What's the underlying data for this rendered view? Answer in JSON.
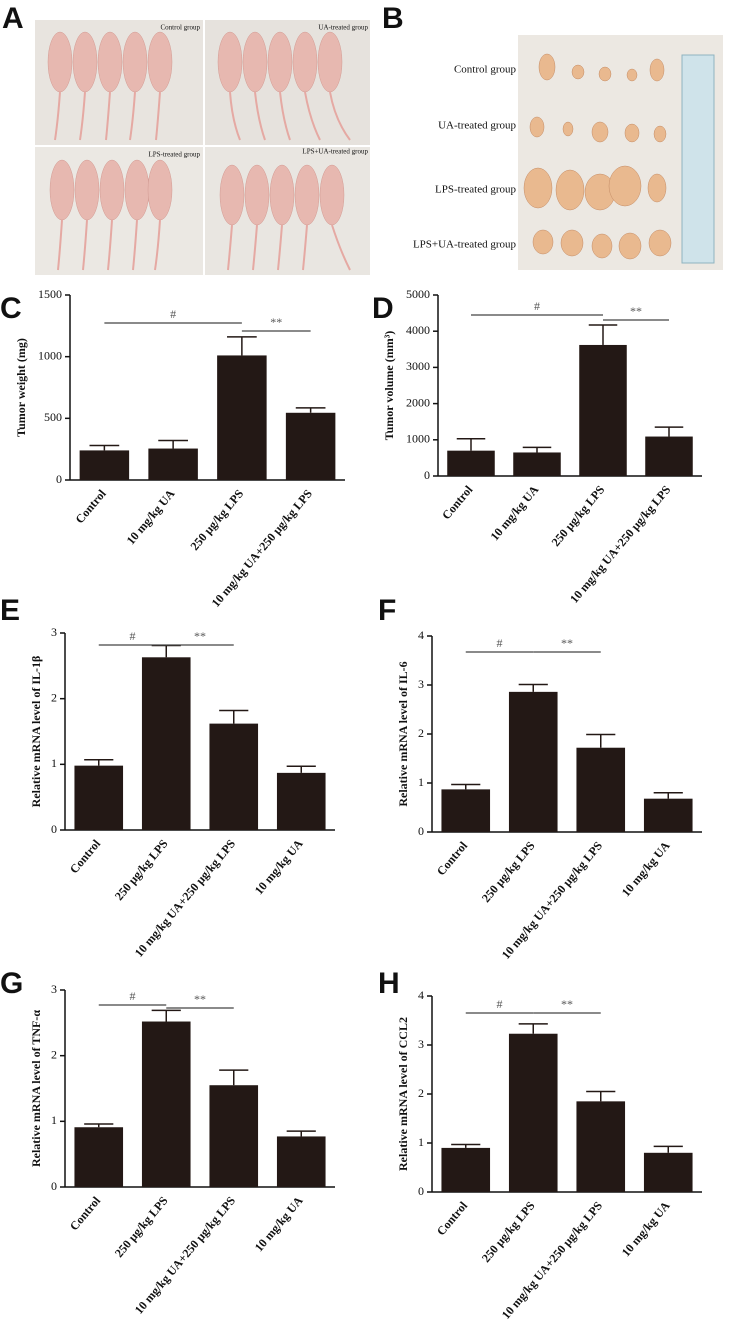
{
  "figure": {
    "panels": [
      {
        "letter": "A",
        "labels": [
          "Control group",
          "UA-treated group",
          "LPS-treated group",
          "LPS+UA-treated group"
        ]
      },
      {
        "letter": "B",
        "labels": [
          "Control group",
          "UA-treated group",
          "LPS-treated group",
          "LPS+UA-treated group"
        ]
      }
    ]
  },
  "chart_data": [
    {
      "type": "bar",
      "panel": "C",
      "y_label": "Tumor weight (mg)",
      "color": "#231815",
      "categories": [
        "Control",
        "10 mg/kg UA",
        "250 μg/kg LPS",
        "10 mg/kg UA+250 μg/kg LPS"
      ],
      "values": [
        240,
        255,
        1010,
        545
      ],
      "errors": [
        40,
        65,
        150,
        40
      ],
      "ylim": [
        0,
        1500
      ],
      "yticks": [
        0,
        500,
        1000,
        1500
      ],
      "annotations": [
        "#",
        "**"
      ]
    },
    {
      "type": "bar",
      "panel": "D",
      "y_label": "Tumor volume (mm³)",
      "color": "#231815",
      "categories": [
        "Control",
        "10 mg/kg UA",
        "250 μg/kg LPS",
        "10 mg/kg UA+250 μg/kg LPS"
      ],
      "values": [
        700,
        650,
        3620,
        1090
      ],
      "errors": [
        330,
        140,
        550,
        260
      ],
      "ylim": [
        0,
        5000
      ],
      "yticks": [
        0,
        1000,
        2000,
        3000,
        4000,
        5000
      ],
      "annotations": [
        "#",
        "**"
      ]
    },
    {
      "type": "bar",
      "panel": "E",
      "y_label": "Relative mRNA level of IL-1β",
      "color": "#231815",
      "categories": [
        "Control",
        "250 μg/kg LPS",
        "10 mg/kg UA+250 μg/kg LPS",
        "10 mg/kg UA"
      ],
      "values": [
        0.98,
        2.63,
        1.62,
        0.87
      ],
      "errors": [
        0.09,
        0.18,
        0.2,
        0.1
      ],
      "ylim": [
        0,
        3
      ],
      "yticks": [
        0,
        1,
        2,
        3
      ],
      "annotations": [
        "#",
        "**"
      ]
    },
    {
      "type": "bar",
      "panel": "F",
      "y_label": "Relative mRNA level of IL-6",
      "color": "#231815",
      "categories": [
        "Control",
        "250 μg/kg LPS",
        "10 mg/kg UA+250 μg/kg LPS",
        "10 mg/kg UA"
      ],
      "values": [
        0.87,
        2.86,
        1.72,
        0.68
      ],
      "errors": [
        0.1,
        0.15,
        0.27,
        0.12
      ],
      "ylim": [
        0,
        4
      ],
      "yticks": [
        0,
        1,
        2,
        3,
        4
      ],
      "annotations": [
        "#",
        "**"
      ]
    },
    {
      "type": "bar",
      "panel": "G",
      "y_label": "Relative mRNA level of TNF-α",
      "color": "#231815",
      "categories": [
        "Control",
        "250 μg/kg LPS",
        "10 mg/kg UA+250 μg/kg LPS",
        "10 mg/kg UA"
      ],
      "values": [
        0.91,
        2.52,
        1.55,
        0.77
      ],
      "errors": [
        0.05,
        0.17,
        0.23,
        0.08
      ],
      "ylim": [
        0,
        3
      ],
      "yticks": [
        0,
        1,
        2,
        3
      ],
      "annotations": [
        "#",
        "**"
      ]
    },
    {
      "type": "bar",
      "panel": "H",
      "y_label": "Relative mRNA level of CCL2",
      "color": "#231815",
      "categories": [
        "Control",
        "250 μg/kg LPS",
        "10 mg/kg UA+250 μg/kg LPS",
        "10 mg/kg UA"
      ],
      "values": [
        0.9,
        3.23,
        1.85,
        0.8
      ],
      "errors": [
        0.07,
        0.2,
        0.2,
        0.13
      ],
      "ylim": [
        0,
        4
      ],
      "yticks": [
        0,
        1,
        2,
        3,
        4
      ],
      "annotations": [
        "#",
        "**"
      ]
    }
  ]
}
